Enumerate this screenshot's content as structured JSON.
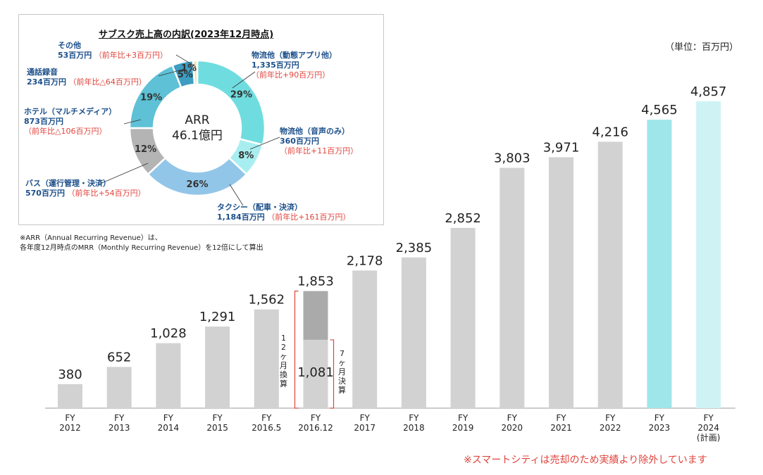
{
  "unit_label": "（単位：百万円）",
  "footnote_lines": [
    "※ARR（Annual Recurring Revenue）は、",
    "各年度12月時点のMRR（Monthly Recurring Revenue）を12倍にして算出"
  ],
  "red_note": "※スマートシティは売却のため実績より除外しています",
  "colors": {
    "bar_gray": "#d2d2d2",
    "bar_dark": "#aaaaaa",
    "bar_2023": "#9fe6ea",
    "bar_2024": "#cff3f5",
    "bracket": "#e0443c"
  },
  "chart_data": {
    "type": "bar",
    "categories": [
      [
        "FY",
        "2012"
      ],
      [
        "FY",
        "2013"
      ],
      [
        "FY",
        "2014"
      ],
      [
        "FY",
        "2015"
      ],
      [
        "FY",
        "2016.5"
      ],
      [
        "FY",
        "2016.12"
      ],
      [
        "FY",
        "2017"
      ],
      [
        "FY",
        "2018"
      ],
      [
        "FY",
        "2019"
      ],
      [
        "FY",
        "2020"
      ],
      [
        "FY",
        "2021"
      ],
      [
        "FY",
        "2022"
      ],
      [
        "FY",
        "2023"
      ],
      [
        "FY",
        "2024",
        "(計画)"
      ]
    ],
    "values": [
      380,
      652,
      1028,
      1291,
      1562,
      1853,
      2178,
      2385,
      2852,
      3803,
      3971,
      4216,
      4565,
      4857
    ],
    "value_labels": [
      "380",
      "652",
      "1,028",
      "1,291",
      "1,562",
      "1,853",
      "2,178",
      "2,385",
      "2,852",
      "3,803",
      "3,971",
      "4,216",
      "4,565",
      "4,857"
    ],
    "fy2016_12_actual": 1081,
    "fy2016_12_actual_label": "1,081",
    "annotation_12m": "12ヶ月換算",
    "annotation_7m": "7ヶ月決算",
    "ylim": [
      0,
      4900
    ],
    "donut": {
      "title": "サブスク売上高の内訳(2023年12月時点)",
      "center_line1": "ARR",
      "center_line2": "46.1億円",
      "slices": [
        {
          "name": "物流他（動態アプリ他）",
          "amount": "1,335百万円",
          "yoy": "（前年比+90百万円）",
          "pct": 29,
          "pct_label": "29%",
          "color": "#6fdde0"
        },
        {
          "name": "物流他（音声のみ）",
          "amount": "360百万円",
          "yoy": "（前年比+11百万円）",
          "pct": 8,
          "pct_label": "8%",
          "color": "#a8eef0"
        },
        {
          "name": "タクシー（配車・決済）",
          "amount": "1,184百万円",
          "yoy": "（前年比+161百万円）",
          "pct": 26,
          "pct_label": "26%",
          "color": "#92c6e8"
        },
        {
          "name": "バス（運行管理・決済）",
          "amount": "570百万円",
          "yoy": "（前年比+54百万円）",
          "pct": 12,
          "pct_label": "12%",
          "color": "#b4b4b4"
        },
        {
          "name": "ホテル（マルチメディア）",
          "amount": "873百万円",
          "yoy": "（前年比△106百万円）",
          "pct": 19,
          "pct_label": "19%",
          "color": "#5ec1d6"
        },
        {
          "name": "通話録音",
          "amount": "234百万円",
          "yoy": "（前年比△64百万円）",
          "pct": 5,
          "pct_label": "5%",
          "color": "#3d9dc2"
        },
        {
          "name": "その他",
          "amount": "53百万円",
          "yoy": "（前年比+3百万円）",
          "pct": 1,
          "pct_label": "1%",
          "color": "#f3e3b8"
        }
      ]
    }
  }
}
